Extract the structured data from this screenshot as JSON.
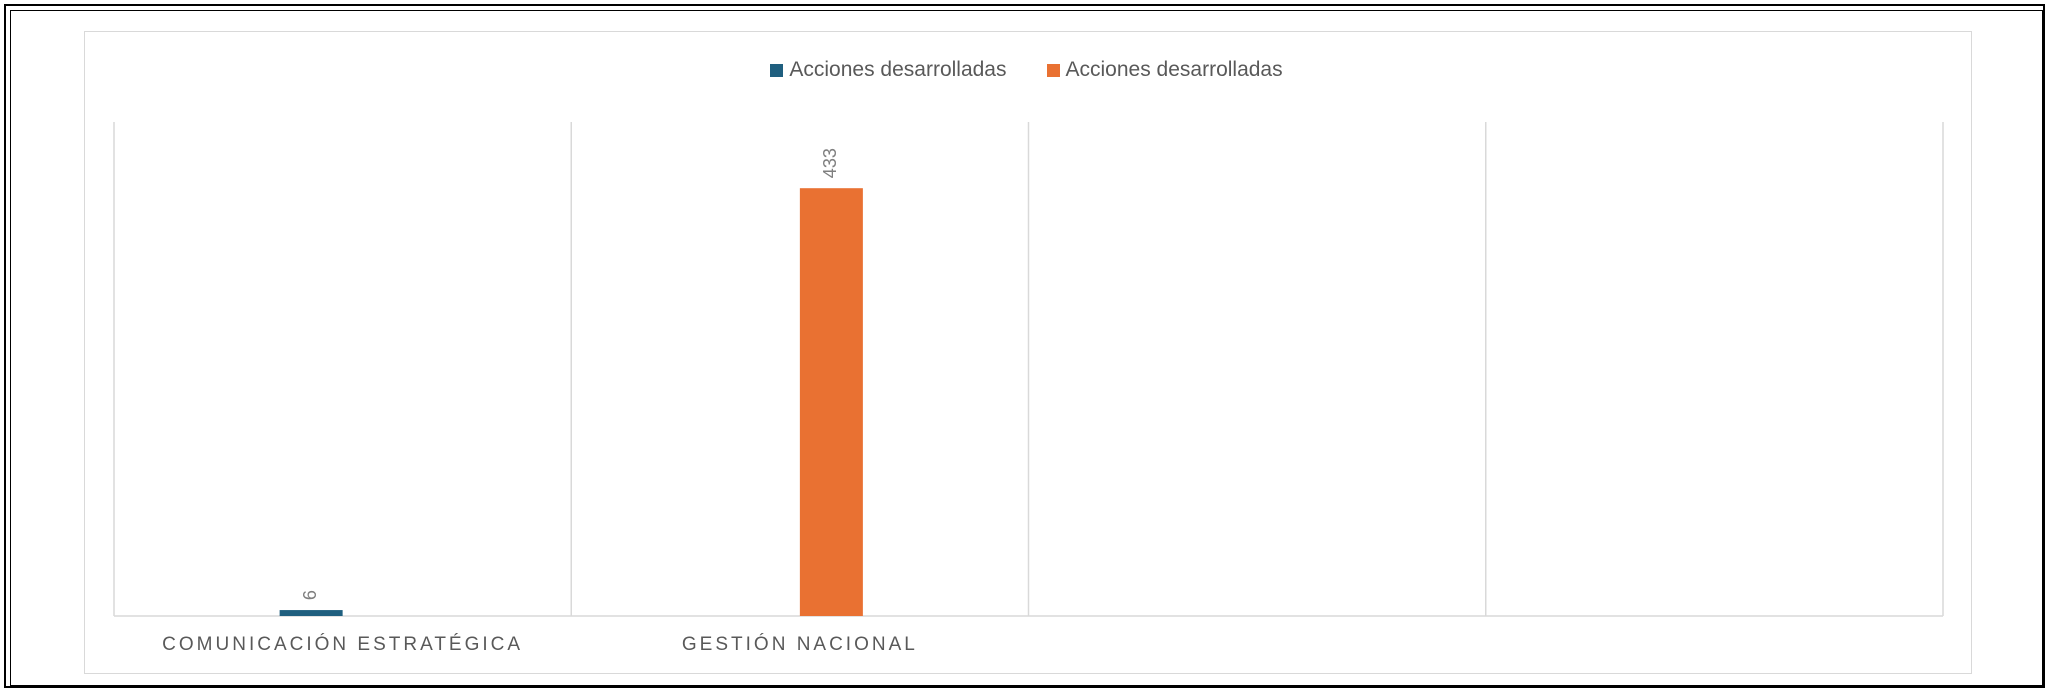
{
  "chart_data": {
    "type": "bar",
    "title": "",
    "xlabel": "",
    "ylabel": "",
    "categories": [
      "COMUNICACIÓN ESTRATÉGICA",
      "GESTIÓN NACIONAL",
      "",
      ""
    ],
    "series": [
      {
        "name": "Acciones desarrolladas",
        "color": "#1f5f7f",
        "values": [
          6,
          null,
          null,
          null
        ]
      },
      {
        "name": "Acciones desarrolladas",
        "color": "#e97132",
        "values": [
          null,
          433,
          null,
          null
        ]
      }
    ],
    "ylim": [
      0,
      500
    ],
    "grid": "vertical category separators",
    "legend_position": "top"
  }
}
